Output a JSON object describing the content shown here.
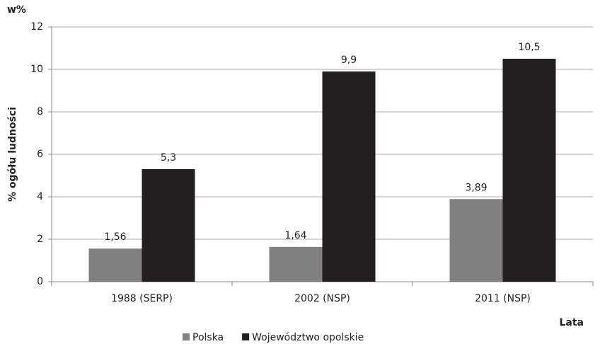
{
  "chart_data": {
    "type": "bar",
    "y_unit": "w%",
    "y_label": "% ogółu ludności",
    "x_label": "Lata",
    "categories": [
      "1988 (SERP)",
      "2002 (NSP)",
      "2011 (NSP)"
    ],
    "series": [
      {
        "name": "Polska",
        "color": "#808080",
        "values": [
          1.56,
          1.64,
          3.89
        ],
        "value_labels": [
          "1,56",
          "1,64",
          "3,89"
        ]
      },
      {
        "name": "Województwo opolskie",
        "color": "#231f20",
        "values": [
          5.3,
          9.9,
          10.5
        ],
        "value_labels": [
          "5,3",
          "9,9",
          "10,5"
        ]
      }
    ],
    "ylim": [
      0,
      12
    ],
    "yticks": [
      0,
      2,
      4,
      6,
      8,
      10,
      12
    ],
    "grid": true,
    "legend": "bottom"
  }
}
